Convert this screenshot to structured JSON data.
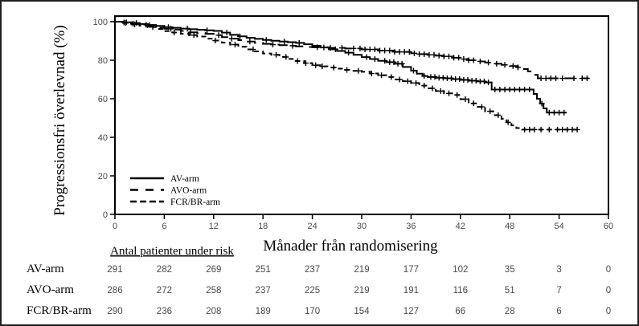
{
  "figure": {
    "background": "#ffffff",
    "border_color": "#1f1f1f",
    "axis_color": "#000000",
    "line_color": "#000000",
    "tick_label_color": "#4a4a4a"
  },
  "chart_data": {
    "type": "line",
    "chart_style": "kaplan-meier-step",
    "title": "",
    "xlabel": "Månader från randomisering",
    "ylabel": "Progressionsfri överlevnad (%)",
    "xlim": [
      0,
      60
    ],
    "ylim": [
      0,
      100
    ],
    "x_ticks": [
      0,
      6,
      12,
      18,
      24,
      30,
      36,
      42,
      48,
      54,
      60
    ],
    "y_ticks": [
      0,
      20,
      40,
      60,
      80,
      100
    ],
    "grid": false,
    "legend": {
      "position": "inside-lower-left",
      "entries": [
        "AV-arm",
        "AVO-arm",
        "FCR/BR-arm"
      ]
    },
    "series": [
      {
        "name": "AV-arm",
        "line_style": "solid",
        "color": "#000000",
        "steps": [
          [
            0,
            100
          ],
          [
            1,
            99.7
          ],
          [
            2,
            99.3
          ],
          [
            3,
            98.8
          ],
          [
            4,
            98.3
          ],
          [
            5,
            97.8
          ],
          [
            6,
            97.2
          ],
          [
            7,
            96.8
          ],
          [
            8,
            96.4
          ],
          [
            9,
            96.1
          ],
          [
            10,
            95.8
          ],
          [
            11,
            95.5
          ],
          [
            12,
            95.2
          ],
          [
            13,
            94.3
          ],
          [
            14,
            93.2
          ],
          [
            15,
            92.4
          ],
          [
            16,
            91.6
          ],
          [
            17,
            91.1
          ],
          [
            18,
            90.5
          ],
          [
            19,
            90.1
          ],
          [
            20,
            89.7
          ],
          [
            21,
            89.4
          ],
          [
            22,
            89.0
          ],
          [
            23,
            88.3
          ],
          [
            24,
            87.5
          ],
          [
            25,
            86.6
          ],
          [
            26,
            85.7
          ],
          [
            27,
            84.8
          ],
          [
            28,
            83.9
          ],
          [
            29,
            82.8
          ],
          [
            30,
            81.6
          ],
          [
            31,
            80.6
          ],
          [
            32,
            79.7
          ],
          [
            33,
            79.0
          ],
          [
            34,
            78.2
          ],
          [
            35,
            76.5
          ],
          [
            36,
            74.6
          ],
          [
            36.7,
            73.0
          ],
          [
            37.4,
            71.8
          ],
          [
            38,
            71.3
          ],
          [
            39,
            70.9
          ],
          [
            40,
            70.6
          ],
          [
            41,
            70.2
          ],
          [
            42,
            69.8
          ],
          [
            43,
            69.4
          ],
          [
            44,
            69.0
          ],
          [
            45,
            68.5
          ],
          [
            45.8,
            64.8
          ],
          [
            50.9,
            62.5
          ],
          [
            51.3,
            60.0
          ],
          [
            51.7,
            57.5
          ],
          [
            52.1,
            55.0
          ],
          [
            52.5,
            52.8
          ],
          [
            54.9,
            52.8
          ]
        ],
        "censor_marks": [
          1.4,
          2.6,
          4.2,
          6.5,
          8.8,
          11.2,
          13.6,
          15.2,
          18.4,
          20.6,
          22.4,
          25.4,
          26.8,
          28.4,
          30.6,
          31.6,
          32.8,
          33.4,
          33.9,
          34.4,
          34.9,
          36.3,
          37.6,
          38.4,
          38.9,
          39.4,
          39.9,
          40.4,
          40.9,
          41.4,
          41.9,
          42.4,
          42.9,
          43.4,
          43.9,
          44.4,
          44.9,
          45.4,
          46.2,
          46.8,
          47.4,
          48.0,
          48.6,
          49.2,
          49.8,
          50.4,
          51.9,
          52.8,
          53.4,
          54.0,
          54.6
        ]
      },
      {
        "name": "AVO-arm",
        "line_style": "long-dash",
        "color": "#000000",
        "steps": [
          [
            0,
            100
          ],
          [
            1,
            99.6
          ],
          [
            2,
            99.0
          ],
          [
            3,
            98.4
          ],
          [
            4,
            97.6
          ],
          [
            5,
            96.9
          ],
          [
            6,
            96.3
          ],
          [
            7,
            95.9
          ],
          [
            8,
            95.2
          ],
          [
            9,
            94.5
          ],
          [
            10,
            94.1
          ],
          [
            11,
            93.7
          ],
          [
            12,
            93.0
          ],
          [
            13,
            92.0
          ],
          [
            14,
            91.2
          ],
          [
            15,
            90.4
          ],
          [
            16,
            89.7
          ],
          [
            17,
            89.0
          ],
          [
            18,
            88.5
          ],
          [
            19,
            88.1
          ],
          [
            20,
            87.8
          ],
          [
            21,
            87.5
          ],
          [
            22,
            87.2
          ],
          [
            23,
            86.9
          ],
          [
            24,
            86.7
          ],
          [
            26,
            86.4
          ],
          [
            28,
            86.1
          ],
          [
            30,
            85.6
          ],
          [
            32,
            85.0
          ],
          [
            34,
            84.3
          ],
          [
            36,
            83.6
          ],
          [
            37,
            83.2
          ],
          [
            38,
            82.8
          ],
          [
            39,
            82.4
          ],
          [
            40,
            82.0
          ],
          [
            41,
            81.3
          ],
          [
            42,
            80.6
          ],
          [
            43,
            80.0
          ],
          [
            44,
            79.4
          ],
          [
            45,
            78.8
          ],
          [
            46,
            78.2
          ],
          [
            47,
            77.6
          ],
          [
            48,
            77.0
          ],
          [
            49,
            76.3
          ],
          [
            49.6,
            75.4
          ],
          [
            50.2,
            74.2
          ],
          [
            50.8,
            72.4
          ],
          [
            51.4,
            70.6
          ],
          [
            57.6,
            70.6
          ]
        ],
        "censor_marks": [
          1.1,
          2.2,
          3.8,
          6.8,
          9.2,
          12.6,
          14.2,
          16.4,
          19.2,
          21.6,
          24.6,
          26.2,
          27.6,
          29.0,
          29.8,
          30.4,
          31.0,
          31.6,
          32.2,
          32.8,
          33.4,
          34.0,
          34.6,
          35.2,
          35.8,
          36.4,
          37.0,
          37.6,
          38.2,
          38.8,
          39.4,
          40.0,
          40.6,
          41.2,
          41.8,
          42.4,
          43.0,
          43.6,
          44.4,
          45.4,
          46.4,
          47.4,
          48.4,
          49.0,
          51.8,
          52.4,
          53.0,
          53.6,
          54.4,
          55.8,
          56.8,
          57.4
        ]
      },
      {
        "name": "FCR/BR-arm",
        "line_style": "short-dash",
        "color": "#000000",
        "steps": [
          [
            0,
            100
          ],
          [
            1,
            99.3
          ],
          [
            2,
            98.6
          ],
          [
            3,
            97.9
          ],
          [
            4,
            97.2
          ],
          [
            5,
            96.2
          ],
          [
            6,
            95.1
          ],
          [
            7,
            94.4
          ],
          [
            8,
            93.7
          ],
          [
            9,
            93.0
          ],
          [
            10,
            92.3
          ],
          [
            11,
            91.2
          ],
          [
            12,
            90.2
          ],
          [
            13,
            89.1
          ],
          [
            14,
            88.1
          ],
          [
            15,
            87.0
          ],
          [
            16,
            85.6
          ],
          [
            17,
            84.6
          ],
          [
            18,
            83.5
          ],
          [
            19,
            82.8
          ],
          [
            20,
            81.7
          ],
          [
            21,
            80.7
          ],
          [
            22,
            79.6
          ],
          [
            23,
            78.5
          ],
          [
            24,
            77.4
          ],
          [
            25,
            76.8
          ],
          [
            26,
            76.2
          ],
          [
            27,
            75.6
          ],
          [
            28,
            75.0
          ],
          [
            29,
            74.5
          ],
          [
            30,
            74.0
          ],
          [
            31,
            73.1
          ],
          [
            32,
            72.2
          ],
          [
            33,
            71.3
          ],
          [
            34,
            70.0
          ],
          [
            35,
            69.1
          ],
          [
            36,
            68.2
          ],
          [
            37,
            66.8
          ],
          [
            38,
            65.4
          ],
          [
            39,
            64.0
          ],
          [
            40,
            62.8
          ],
          [
            41,
            62.0
          ],
          [
            42,
            59.8
          ],
          [
            43,
            57.6
          ],
          [
            44,
            55.8
          ],
          [
            45,
            53.5
          ],
          [
            46,
            51.5
          ],
          [
            47,
            49.6
          ],
          [
            47.6,
            47.8
          ],
          [
            48.2,
            46.2
          ],
          [
            48.8,
            44.8
          ],
          [
            49.5,
            44.0
          ],
          [
            56.5,
            44.0
          ]
        ],
        "censor_marks": [
          1.3,
          2.4,
          4.6,
          7.2,
          9.6,
          12.2,
          14.6,
          16.8,
          19.6,
          20.8,
          22.2,
          23.2,
          24.4,
          25.2,
          26.6,
          28.2,
          29.6,
          31.2,
          32.4,
          33.6,
          34.6,
          35.6,
          36.6,
          37.6,
          38.6,
          39.6,
          40.6,
          41.6,
          42.6,
          43.6,
          44.6,
          45.6,
          46.6,
          47.8,
          49.8,
          50.4,
          51.0,
          51.8,
          52.8,
          53.8,
          54.4,
          55.0,
          55.6,
          56.2
        ]
      }
    ],
    "risk_table": {
      "header": "Antal patienter under risk",
      "time_points": [
        0,
        6,
        12,
        18,
        24,
        30,
        36,
        42,
        48,
        54,
        60
      ],
      "rows": [
        {
          "label": "AV-arm",
          "counts": [
            291,
            282,
            269,
            251,
            237,
            219,
            177,
            102,
            35,
            3,
            0
          ]
        },
        {
          "label": "AVO-arm",
          "counts": [
            286,
            272,
            258,
            237,
            225,
            219,
            191,
            116,
            51,
            7,
            0
          ]
        },
        {
          "label": "FCR/BR-arm",
          "counts": [
            290,
            236,
            208,
            189,
            170,
            154,
            127,
            66,
            28,
            6,
            0
          ]
        }
      ]
    }
  }
}
